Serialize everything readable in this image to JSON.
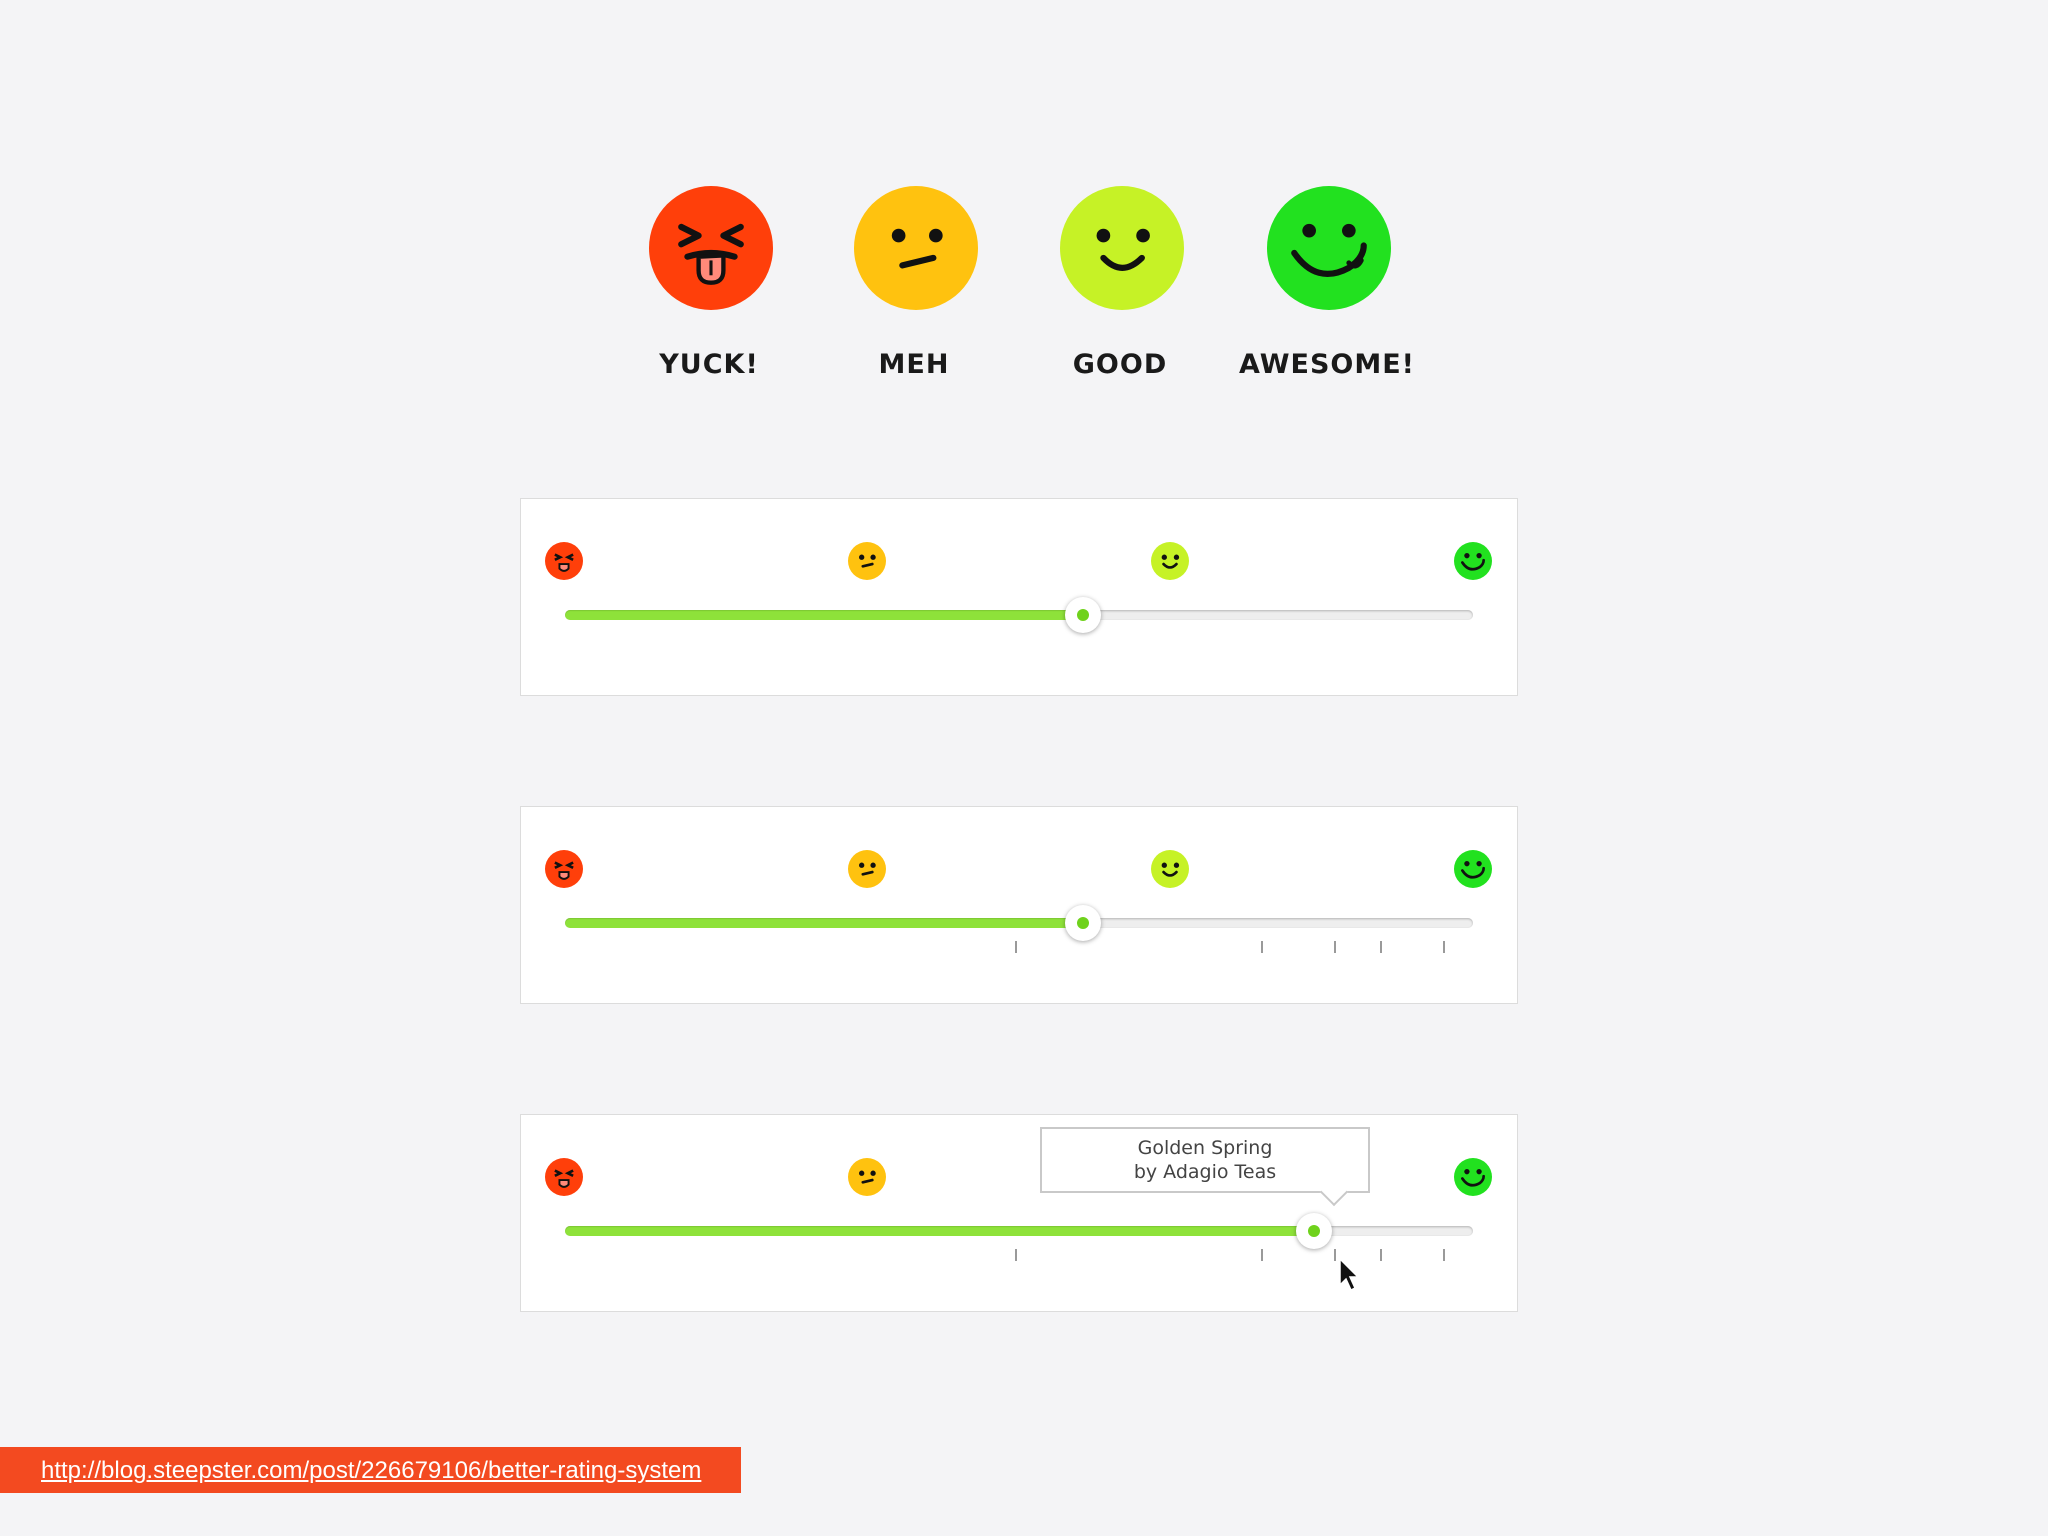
{
  "faces": [
    {
      "label": "YUCK!",
      "icon": "yuck-face-icon",
      "color": "#ff3f0a"
    },
    {
      "label": "MEH",
      "icon": "meh-face-icon",
      "color": "#ffc20f"
    },
    {
      "label": "GOOD",
      "icon": "good-face-icon",
      "color": "#c6f226"
    },
    {
      "label": "AWESOME!",
      "icon": "awesome-face-icon",
      "color": "#22e11f"
    }
  ],
  "sliders": [
    {
      "value": 0.57,
      "show_ticks": false,
      "show_tooltip": false
    },
    {
      "value": 0.57,
      "show_ticks": true,
      "show_tooltip": false
    },
    {
      "value": 0.825,
      "show_ticks": true,
      "show_tooltip": true
    }
  ],
  "tooltip": {
    "line1": "Golden Spring",
    "line2": "by Adagio Teas"
  },
  "colors": {
    "fill": "#8ee23a",
    "thumb_dot": "#6fd21c",
    "source_bar": "#f34a20"
  },
  "source": {
    "url_text": "http://blog.steepster.com/post/226679106/better-rating-system"
  }
}
